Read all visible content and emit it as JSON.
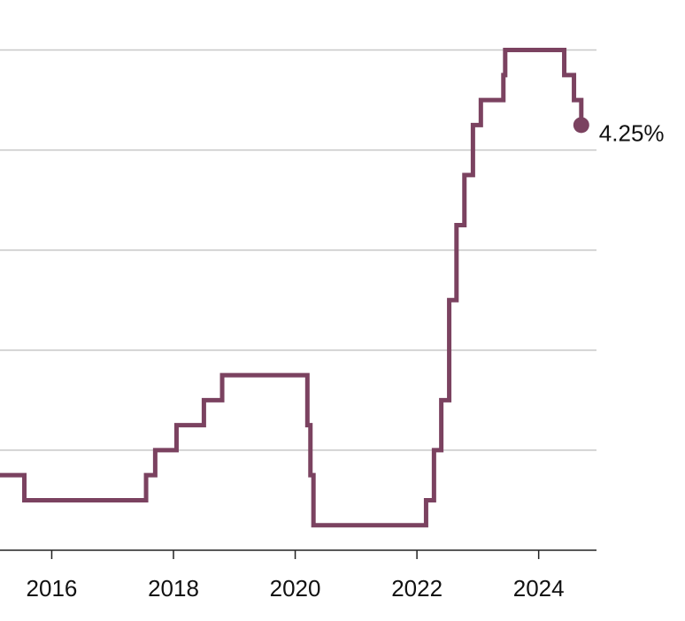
{
  "chart_data": {
    "type": "line",
    "step": true,
    "xlim": [
      2015.15,
      2024.95
    ],
    "ylim": [
      0,
      5.5
    ],
    "gridlines_y": [
      1,
      2,
      3,
      4,
      5
    ],
    "x_ticks": [
      2016,
      2018,
      2020,
      2022,
      2024
    ],
    "x_tick_labels": [
      "2016",
      "2018",
      "2020",
      "2022",
      "2024"
    ],
    "grid": true,
    "series": [
      {
        "color": "#7b4260",
        "points": [
          [
            2015.15,
            0.75
          ],
          [
            2015.55,
            0.5
          ],
          [
            2017.55,
            0.75
          ],
          [
            2017.7,
            1.0
          ],
          [
            2018.05,
            1.25
          ],
          [
            2018.5,
            1.5
          ],
          [
            2018.8,
            1.75
          ],
          [
            2020.2,
            1.25
          ],
          [
            2020.25,
            0.75
          ],
          [
            2020.3,
            0.25
          ],
          [
            2022.15,
            0.5
          ],
          [
            2022.28,
            1.0
          ],
          [
            2022.4,
            1.5
          ],
          [
            2022.53,
            2.5
          ],
          [
            2022.65,
            3.25
          ],
          [
            2022.78,
            3.75
          ],
          [
            2022.92,
            4.25
          ],
          [
            2023.05,
            4.5
          ],
          [
            2023.42,
            4.75
          ],
          [
            2023.45,
            5.0
          ],
          [
            2024.42,
            4.75
          ],
          [
            2024.58,
            4.5
          ],
          [
            2024.7,
            4.25
          ]
        ],
        "end_value_label": "4.25%"
      }
    ]
  }
}
